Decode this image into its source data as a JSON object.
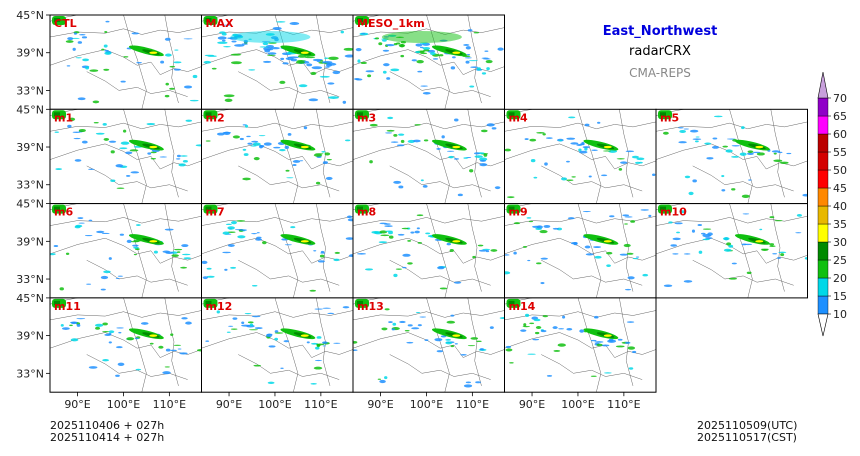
{
  "header": {
    "region": "East_Northwest",
    "variable": "radarCRX",
    "model": "CMA-REPS"
  },
  "footer": {
    "init_utc": "2025110406  +  027h",
    "init_bjt": "2025110414  +  027h",
    "valid_utc": "2025110509(UTC)",
    "valid_cst": "2025110517(CST)"
  },
  "colors": {
    "panel_label": "#dd0000",
    "frame": "#000000",
    "background": "#ffffff"
  },
  "chart_data": {
    "type": "heatmap",
    "title": "East_Northwest radarCRX CMA-REPS",
    "panels": [
      [
        "CTL",
        "MAX",
        "MESO_1km"
      ],
      [
        "m1",
        "m2",
        "m3",
        "m4",
        "m5"
      ],
      [
        "m6",
        "m7",
        "m8",
        "m9",
        "m10"
      ],
      [
        "m11",
        "m12",
        "m13",
        "m14"
      ]
    ],
    "lat_ticks": [
      "45°N",
      "39°N",
      "33°N"
    ],
    "lon_ticks": [
      "90°E",
      "100°E",
      "110°E"
    ],
    "colorbar": {
      "levels": [
        10,
        15,
        20,
        25,
        30,
        35,
        40,
        45,
        50,
        55,
        60,
        65,
        70
      ],
      "colors": [
        "#1e90ff",
        "#00d8e8",
        "#10c010",
        "#008a00",
        "#ffff00",
        "#e8b800",
        "#ff8800",
        "#ff0000",
        "#d40000",
        "#bb0000",
        "#ff00ff",
        "#9000c8"
      ]
    }
  }
}
